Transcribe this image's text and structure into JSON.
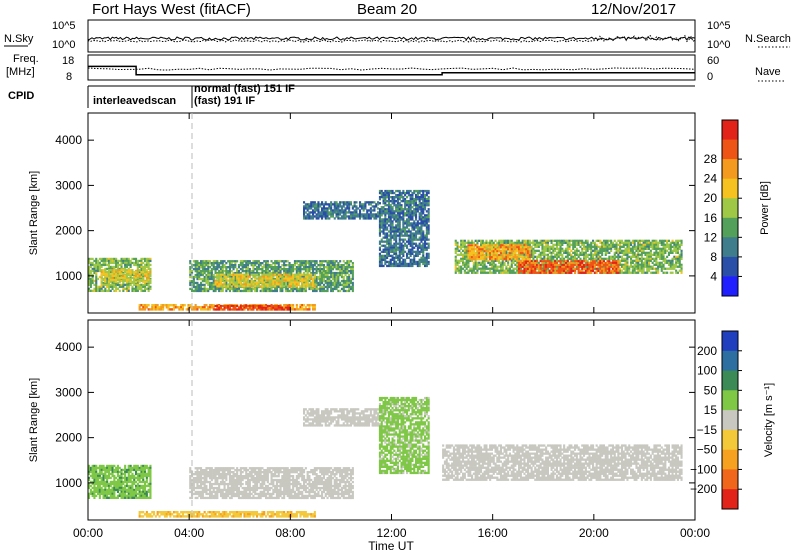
{
  "header": {
    "station": "Fort Hays West (fitACF)",
    "beam": "Beam 20",
    "date": "12/Nov/2017"
  },
  "top_panels": {
    "nsky_label": "N.Sky",
    "nsearch_label": "N.Search",
    "nave_label": "Nave",
    "freq_label_line1": "Freq.",
    "freq_label_line2": "[MHz]",
    "cpid_label": "CPID",
    "nsky_ticks": [
      "10^5",
      "10^0"
    ],
    "nsearch_ticks": [
      "10^5",
      "10^0"
    ],
    "freq_ticks": [
      "18",
      "8"
    ],
    "nave_ticks": [
      "60",
      "0"
    ],
    "cpid_modes": [
      "interleavedscan",
      "normal (fast) 151 IF",
      "(fast) 191 IF"
    ]
  },
  "x_axis": {
    "label": "Time UT",
    "ticks": [
      "00:00",
      "04:00",
      "08:00",
      "12:00",
      "16:00",
      "20:00",
      "00:00"
    ]
  },
  "power_panel": {
    "ylabel": "Slant Range [km]",
    "yticks": [
      "1000",
      "2000",
      "3000",
      "4000"
    ],
    "colorbar_label": "Power [dB]",
    "colorbar_ticks": [
      "4",
      "8",
      "12",
      "16",
      "20",
      "24",
      "28"
    ],
    "colors": [
      "#1f1fff",
      "#2a4fa8",
      "#3f7c8c",
      "#53a05a",
      "#9fc846",
      "#f6c21f",
      "#f49a1e",
      "#ee5416",
      "#e2231a"
    ]
  },
  "velocity_panel": {
    "ylabel": "Slant Range [km]",
    "yticks": [
      "1000",
      "2000",
      "3000",
      "4000"
    ],
    "colorbar_label": "Velocity [m s⁻¹]",
    "colorbar_ticks": [
      "200",
      "100",
      "50",
      "15",
      "−15",
      "−50",
      "−100",
      "−200"
    ],
    "colors": [
      "#1f3fbf",
      "#2c6fa0",
      "#3c8a56",
      "#7ec846",
      "#c8c8c0",
      "#f3c93a",
      "#f6a11f",
      "#f0661a",
      "#e2231a"
    ]
  },
  "chart_data": {
    "type": "heatmap",
    "title": "Fort Hays West (fitACF)",
    "subtitle": "Beam 20 12/Nov/2017",
    "xlabel": "Time UT",
    "ylabel": "Slant Range [km]",
    "xlim_hours": [
      0,
      24
    ],
    "ylim_km": [
      180,
      4600
    ],
    "grid": false,
    "frequency_mhz": [
      {
        "start_h": 0,
        "end_h": 1.9,
        "value": 14
      },
      {
        "start_h": 1.9,
        "end_h": 14.0,
        "value": 10
      },
      {
        "start_h": 14.0,
        "end_h": 24,
        "value": 11
      }
    ],
    "cpid": [
      {
        "start_h": 0,
        "end_h": 4.0,
        "label": "interleavedscan"
      },
      {
        "start_h": 4.0,
        "end_h": 24,
        "label": "normal (fast) 151 IF"
      }
    ],
    "power_regions": [
      {
        "t0": 0.0,
        "t1": 2.5,
        "r0": 650,
        "r1": 1400,
        "db": 14
      },
      {
        "t0": 0.5,
        "t1": 2.5,
        "r0": 850,
        "r1": 1150,
        "db": 18
      },
      {
        "t0": 4.0,
        "t1": 10.5,
        "r0": 650,
        "r1": 1350,
        "db": 12
      },
      {
        "t0": 5.0,
        "t1": 9.0,
        "r0": 750,
        "r1": 1050,
        "db": 18
      },
      {
        "t0": 2.0,
        "t1": 9.0,
        "r0": 240,
        "r1": 380,
        "db": 22
      },
      {
        "t0": 5.0,
        "t1": 8.0,
        "r0": 240,
        "r1": 360,
        "db": 28
      },
      {
        "t0": 8.5,
        "t1": 11.5,
        "r0": 2250,
        "r1": 2650,
        "db": 8
      },
      {
        "t0": 11.5,
        "t1": 13.5,
        "r0": 1200,
        "r1": 2900,
        "db": 8
      },
      {
        "t0": 14.5,
        "t1": 23.5,
        "r0": 1050,
        "r1": 1800,
        "db": 14
      },
      {
        "t0": 17.0,
        "t1": 21.0,
        "r0": 1050,
        "r1": 1350,
        "db": 26
      },
      {
        "t0": 15.0,
        "t1": 17.5,
        "r0": 1350,
        "r1": 1700,
        "db": 22
      }
    ],
    "velocity_regions": [
      {
        "t0": 0.0,
        "t1": 2.5,
        "r0": 650,
        "r1": 1400,
        "v": 40
      },
      {
        "t0": 4.0,
        "t1": 10.5,
        "r0": 650,
        "r1": 1350,
        "v": 0
      },
      {
        "t0": 2.0,
        "t1": 9.0,
        "r0": 240,
        "r1": 380,
        "v": -40
      },
      {
        "t0": 8.5,
        "t1": 11.5,
        "r0": 2250,
        "r1": 2650,
        "v": 0
      },
      {
        "t0": 11.5,
        "t1": 13.5,
        "r0": 1200,
        "r1": 2900,
        "v": 25
      },
      {
        "t0": 14.0,
        "t1": 23.5,
        "r0": 1050,
        "r1": 1850,
        "v": 0
      }
    ]
  }
}
